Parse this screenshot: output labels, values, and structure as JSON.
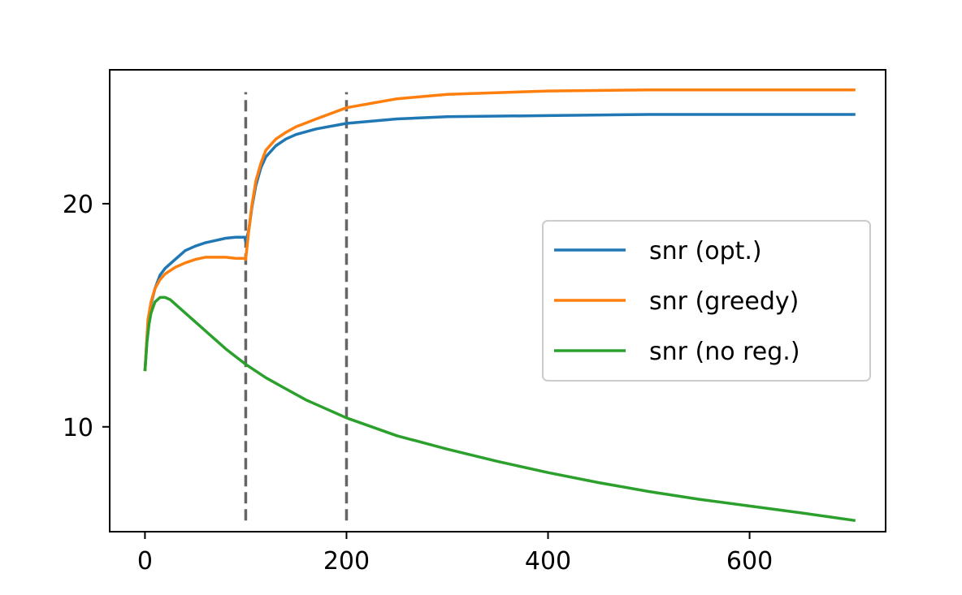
{
  "chart_data": {
    "type": "line",
    "title": "",
    "xlabel": "",
    "ylabel": "",
    "xlim": [
      -35,
      735
    ],
    "ylim": [
      5.3,
      26.0
    ],
    "xticks": [
      0,
      200,
      400,
      600
    ],
    "yticks": [
      10,
      20
    ],
    "grid": false,
    "legend_position": "center-right",
    "vlines": [
      {
        "x": 100,
        "y_range": [
          5.8,
          25.0
        ],
        "color": "#666666",
        "style": "dashed"
      },
      {
        "x": 200,
        "y_range": [
          5.8,
          25.0
        ],
        "color": "#666666",
        "style": "dashed"
      }
    ],
    "series": [
      {
        "name": "snr (opt.)",
        "color": "#1f77b4",
        "x": [
          0,
          3,
          6,
          10,
          15,
          20,
          30,
          40,
          50,
          60,
          70,
          80,
          90,
          99,
          100,
          103,
          106,
          110,
          115,
          120,
          130,
          140,
          150,
          170,
          200,
          250,
          300,
          400,
          500,
          600,
          705
        ],
        "y": [
          12.5,
          14.6,
          15.5,
          16.2,
          16.8,
          17.1,
          17.5,
          17.9,
          18.1,
          18.25,
          18.35,
          18.45,
          18.5,
          18.5,
          18.3,
          18.8,
          19.8,
          20.8,
          21.6,
          22.1,
          22.6,
          22.9,
          23.1,
          23.35,
          23.6,
          23.8,
          23.9,
          23.95,
          24.0,
          24.0,
          24.0
        ]
      },
      {
        "name": "snr (greedy)",
        "color": "#ff7f0e",
        "x": [
          0,
          3,
          6,
          10,
          15,
          20,
          30,
          40,
          50,
          60,
          70,
          80,
          90,
          99,
          100,
          103,
          106,
          110,
          115,
          120,
          130,
          140,
          150,
          170,
          200,
          250,
          300,
          400,
          500,
          600,
          705
        ],
        "y": [
          12.5,
          14.8,
          15.6,
          16.2,
          16.6,
          16.85,
          17.15,
          17.35,
          17.5,
          17.6,
          17.6,
          17.6,
          17.55,
          17.55,
          17.5,
          18.8,
          19.9,
          21.0,
          21.8,
          22.4,
          22.9,
          23.2,
          23.45,
          23.8,
          24.3,
          24.7,
          24.9,
          25.05,
          25.1,
          25.1,
          25.1
        ]
      },
      {
        "name": "snr (no reg.)",
        "color": "#2ca02c",
        "x": [
          0,
          2,
          4,
          6,
          10,
          15,
          20,
          25,
          30,
          40,
          50,
          60,
          70,
          80,
          90,
          100,
          120,
          140,
          160,
          180,
          200,
          250,
          300,
          350,
          400,
          450,
          500,
          550,
          600,
          650,
          705
        ],
        "y": [
          12.5,
          13.8,
          14.6,
          15.1,
          15.6,
          15.8,
          15.8,
          15.7,
          15.5,
          15.1,
          14.7,
          14.3,
          13.9,
          13.5,
          13.15,
          12.8,
          12.2,
          11.7,
          11.2,
          10.8,
          10.4,
          9.6,
          9.0,
          8.45,
          7.95,
          7.5,
          7.1,
          6.75,
          6.45,
          6.15,
          5.8
        ]
      }
    ]
  }
}
